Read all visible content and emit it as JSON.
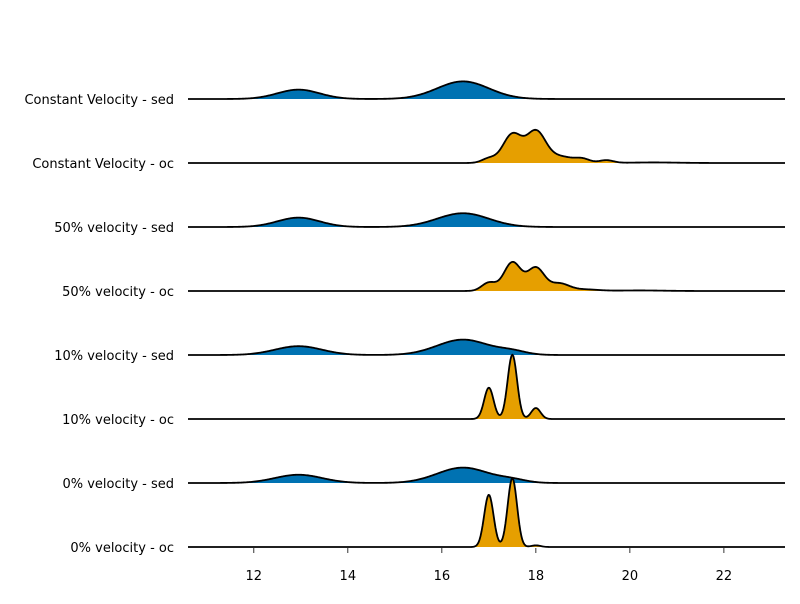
{
  "chart_data": {
    "type": "area",
    "title": "",
    "xlabel": "",
    "ylabel": "",
    "xlim": [
      10.6,
      23.3
    ],
    "x_ticks": [
      12,
      14,
      16,
      18,
      20,
      22
    ],
    "x_tick_labels": [
      "12",
      "14",
      "16",
      "18",
      "20",
      "22"
    ],
    "grid": false,
    "legend": "none",
    "colors": {
      "sed": "#0072B2",
      "oc": "#E69F00",
      "outline": "#000000"
    },
    "series": [
      {
        "name": "Constant Velocity - sed",
        "group": "sed",
        "components": [
          {
            "mu": 12.95,
            "sigma": 0.45,
            "amp": 0.17
          },
          {
            "mu": 16.45,
            "sigma": 0.55,
            "amp": 0.32
          }
        ]
      },
      {
        "name": "Constant Velocity - oc",
        "group": "oc",
        "components": [
          {
            "mu": 17.0,
            "sigma": 0.15,
            "amp": 0.08
          },
          {
            "mu": 17.5,
            "sigma": 0.2,
            "amp": 0.52
          },
          {
            "mu": 18.0,
            "sigma": 0.2,
            "amp": 0.55
          },
          {
            "mu": 18.5,
            "sigma": 0.3,
            "amp": 0.12
          },
          {
            "mu": 19.0,
            "sigma": 0.15,
            "amp": 0.06
          },
          {
            "mu": 19.5,
            "sigma": 0.15,
            "amp": 0.05
          },
          {
            "mu": 20.5,
            "sigma": 0.5,
            "amp": 0.01
          }
        ]
      },
      {
        "name": "50% velocity - sed",
        "group": "sed",
        "components": [
          {
            "mu": 12.95,
            "sigma": 0.45,
            "amp": 0.17
          },
          {
            "mu": 16.45,
            "sigma": 0.55,
            "amp": 0.25
          }
        ]
      },
      {
        "name": "50% velocity - oc",
        "group": "oc",
        "components": [
          {
            "mu": 17.0,
            "sigma": 0.15,
            "amp": 0.15
          },
          {
            "mu": 17.5,
            "sigma": 0.18,
            "amp": 0.52
          },
          {
            "mu": 18.0,
            "sigma": 0.18,
            "amp": 0.42
          },
          {
            "mu": 18.5,
            "sigma": 0.2,
            "amp": 0.13
          },
          {
            "mu": 19.0,
            "sigma": 0.3,
            "amp": 0.03
          },
          {
            "mu": 20.2,
            "sigma": 0.5,
            "amp": 0.01
          }
        ]
      },
      {
        "name": "10% velocity - sed",
        "group": "sed",
        "components": [
          {
            "mu": 12.95,
            "sigma": 0.5,
            "amp": 0.16
          },
          {
            "mu": 16.45,
            "sigma": 0.55,
            "amp": 0.28
          },
          {
            "mu": 17.5,
            "sigma": 0.3,
            "amp": 0.06
          }
        ]
      },
      {
        "name": "10% velocity - oc",
        "group": "oc",
        "components": [
          {
            "mu": 17.0,
            "sigma": 0.1,
            "amp": 0.57
          },
          {
            "mu": 17.5,
            "sigma": 0.1,
            "amp": 1.17
          },
          {
            "mu": 18.0,
            "sigma": 0.1,
            "amp": 0.2
          }
        ]
      },
      {
        "name": "0% velocity - sed",
        "group": "sed",
        "components": [
          {
            "mu": 12.95,
            "sigma": 0.5,
            "amp": 0.15
          },
          {
            "mu": 16.45,
            "sigma": 0.55,
            "amp": 0.28
          },
          {
            "mu": 17.5,
            "sigma": 0.3,
            "amp": 0.05
          }
        ]
      },
      {
        "name": "0% velocity - oc",
        "group": "oc",
        "components": [
          {
            "mu": 17.0,
            "sigma": 0.1,
            "amp": 0.95
          },
          {
            "mu": 17.5,
            "sigma": 0.1,
            "amp": 1.25
          },
          {
            "mu": 18.0,
            "sigma": 0.1,
            "amp": 0.03
          }
        ]
      }
    ]
  }
}
